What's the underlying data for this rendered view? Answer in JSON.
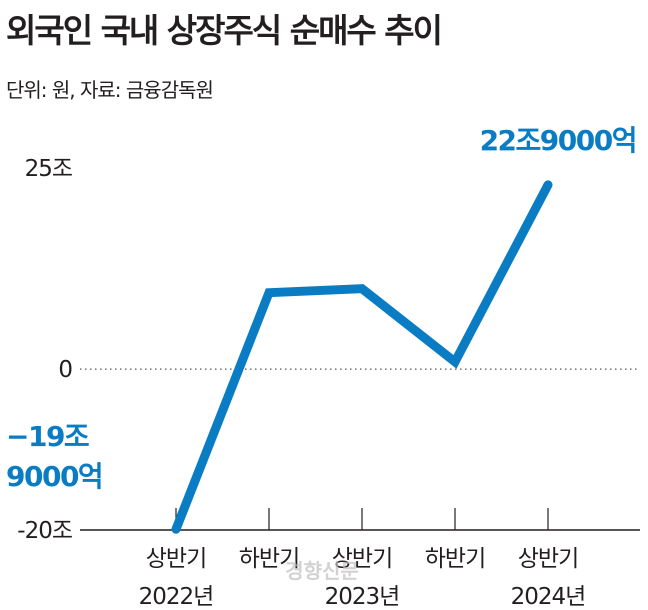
{
  "title": "외국인 국내 상장주식 순매수 추이",
  "subtitle": "단위: 원, 자료: 금융감독원",
  "watermark": "경향신문",
  "chart_data": {
    "type": "line",
    "color": "#0a7cc4",
    "categories": [
      "상반기",
      "하반기",
      "상반기",
      "하반기",
      "상반기"
    ],
    "year_labels": [
      "2022년",
      "",
      "2023년",
      "",
      "2024년"
    ],
    "values": [
      -19.9,
      9.5,
      10.0,
      0.9,
      22.9
    ],
    "unit": "조",
    "yticks": [
      "25조",
      "0",
      "-20조"
    ],
    "ytick_values": [
      25,
      0,
      -20
    ],
    "ylim": [
      -20,
      25
    ],
    "zero_line": "dotted",
    "annotations": [
      {
        "lines": [
          "−19조",
          "9000억"
        ],
        "point": 0
      },
      {
        "lines": [
          "22조9000억"
        ],
        "point": 4
      }
    ]
  }
}
